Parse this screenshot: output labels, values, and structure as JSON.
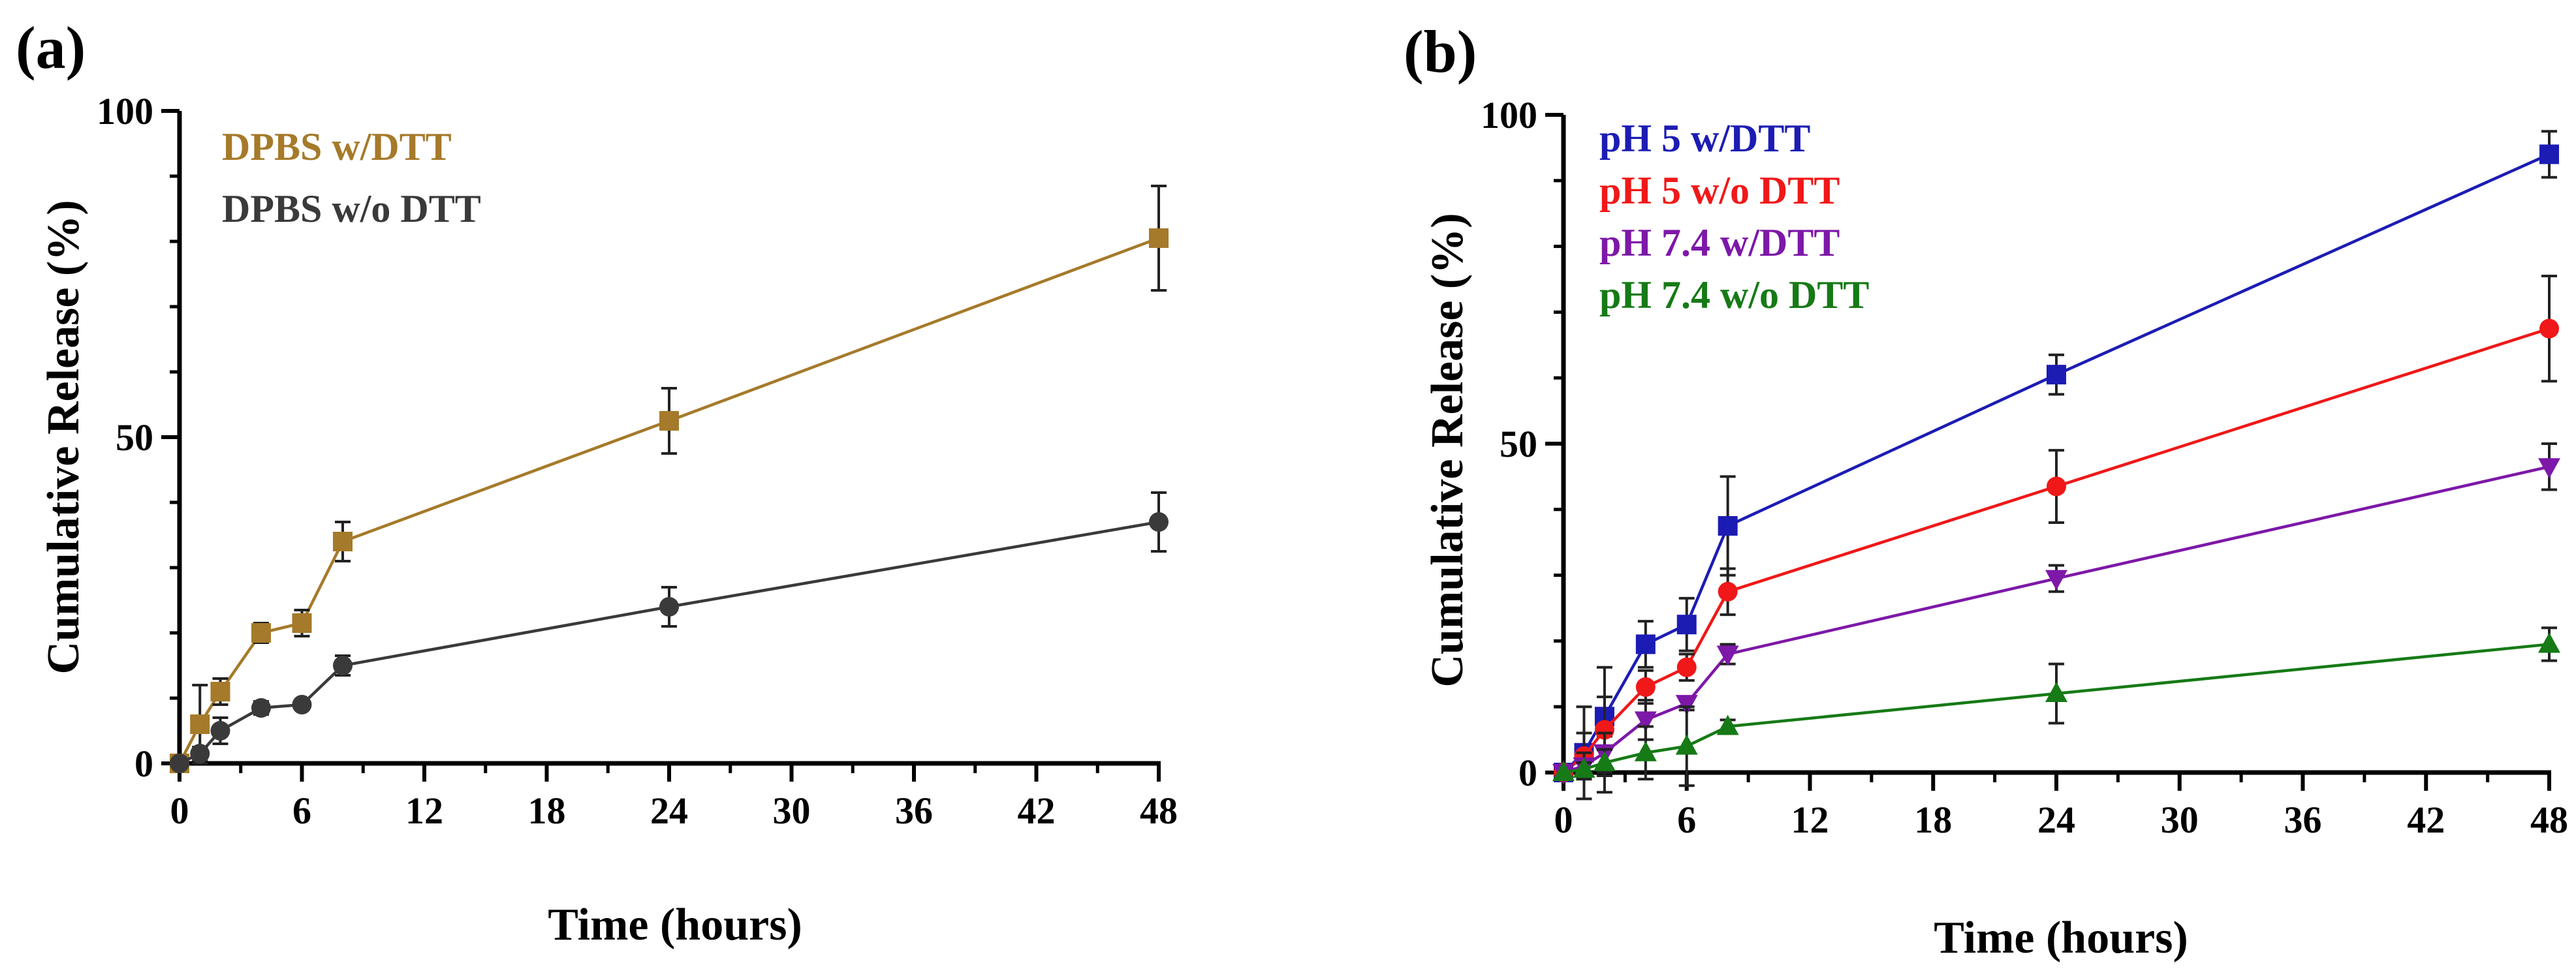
{
  "chart_data": [
    {
      "panel_label": "(a)",
      "type": "line",
      "xlabel": "Time (hours)",
      "ylabel": "Cumulative Release (%)",
      "xlim": [
        0,
        48
      ],
      "ylim": [
        0,
        100
      ],
      "xticks": [
        "0",
        "6",
        "12",
        "18",
        "24",
        "30",
        "36",
        "42",
        "48"
      ],
      "yticks": [
        "0",
        "50",
        "100"
      ],
      "grid": false,
      "legend_position": "top-left",
      "x": [
        0,
        1,
        2,
        4,
        6,
        8,
        24,
        48
      ],
      "series": [
        {
          "name": "DPBS w/DTT",
          "color": "#a57a2a",
          "marker": "square",
          "values": [
            0,
            6,
            11,
            20,
            21.5,
            34,
            52.5,
            80.5
          ],
          "errors": [
            0,
            6,
            2,
            1.5,
            2,
            3,
            5,
            8
          ]
        },
        {
          "name": "DPBS w/o DTT",
          "color": "#3a3a3a",
          "marker": "circle",
          "values": [
            0,
            1.5,
            5,
            8.5,
            9,
            15,
            24,
            37
          ],
          "errors": [
            0,
            1,
            2,
            1,
            0.5,
            1.5,
            3,
            4.5
          ]
        }
      ]
    },
    {
      "panel_label": "(b)",
      "type": "line",
      "xlabel": "Time (hours)",
      "ylabel": "Cumulative Release (%)",
      "xlim": [
        0,
        48
      ],
      "ylim": [
        0,
        100
      ],
      "xticks": [
        "0",
        "6",
        "12",
        "18",
        "24",
        "30",
        "36",
        "42",
        "48"
      ],
      "yticks": [
        "0",
        "50",
        "100"
      ],
      "grid": false,
      "legend_position": "top-left",
      "x": [
        0,
        1,
        2,
        4,
        6,
        8,
        24,
        48
      ],
      "series": [
        {
          "name": "pH 5 w/DTT",
          "color": "#1c1cb4",
          "marker": "square",
          "values": [
            0,
            3,
            8.5,
            19.5,
            22.5,
            37.5,
            60.5,
            94
          ],
          "errors": [
            0,
            7,
            3,
            3.5,
            4,
            7.5,
            3,
            3.5
          ]
        },
        {
          "name": "pH 5 w/o DTT",
          "color": "#f01818",
          "marker": "circle",
          "values": [
            0,
            2.5,
            6.5,
            13,
            16,
            27.5,
            43.5,
            67.5
          ],
          "errors": [
            0,
            3.5,
            9.5,
            2.5,
            2,
            3.5,
            5.5,
            8
          ]
        },
        {
          "name": "pH 7.4 w/DTT",
          "color": "#7d18a8",
          "marker": "triangle-down",
          "values": [
            0,
            1,
            3,
            8,
            10.5,
            18,
            29.5,
            46.5
          ],
          "errors": [
            0,
            2,
            3,
            3,
            1,
            1.5,
            2,
            3.5
          ]
        },
        {
          "name": "pH 7.4 w/o DTT",
          "color": "#167a16",
          "marker": "triangle-up",
          "values": [
            0,
            0.5,
            1.5,
            3,
            4,
            7,
            12,
            19.5
          ],
          "errors": [
            0,
            1,
            2,
            4,
            6,
            1,
            4.5,
            2.5
          ]
        }
      ]
    }
  ]
}
